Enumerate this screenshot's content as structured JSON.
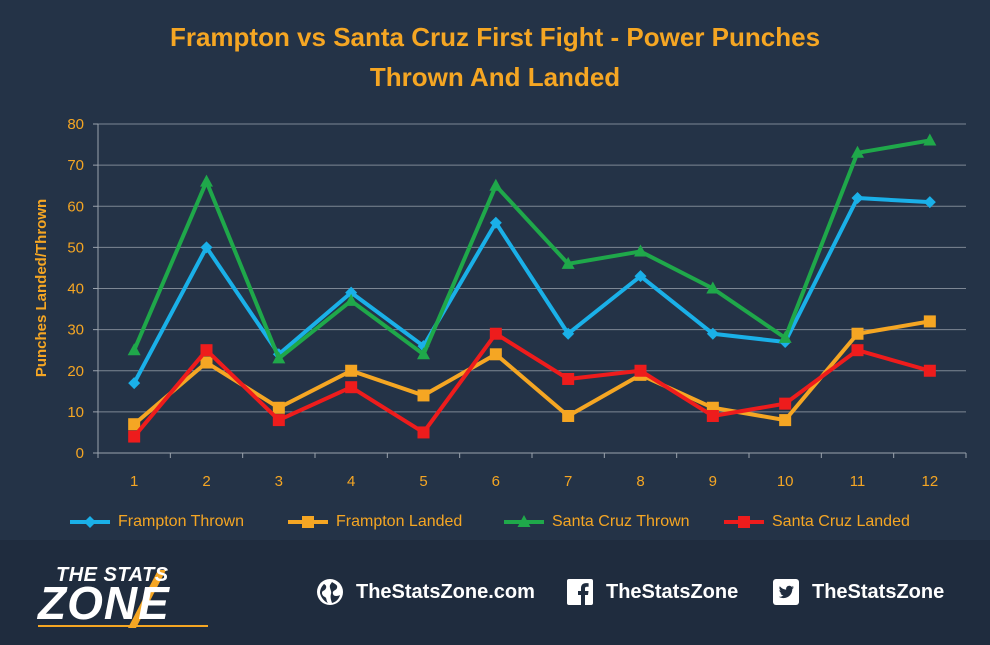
{
  "title_line1": "Frampton vs Santa Cruz First Fight - Power Punches",
  "title_line2": "Thrown And Landed",
  "chart_data": {
    "type": "line",
    "title": "Frampton vs Santa Cruz First Fight - Power Punches Thrown And Landed",
    "xlabel": "",
    "ylabel": "Punches Landed/Thrown",
    "x": [
      1,
      2,
      3,
      4,
      5,
      6,
      7,
      8,
      9,
      10,
      11,
      12
    ],
    "ylim": [
      0,
      80
    ],
    "yticks": [
      0,
      10,
      20,
      30,
      40,
      50,
      60,
      70,
      80
    ],
    "grid": true,
    "legend": "bottom",
    "series": [
      {
        "name": "Frampton Thrown",
        "color": "#1ab0e8",
        "marker": "diamond",
        "values": [
          17,
          50,
          24,
          39,
          26,
          56,
          29,
          43,
          29,
          27,
          62,
          61
        ]
      },
      {
        "name": "Frampton Landed",
        "color": "#f5a623",
        "marker": "square",
        "values": [
          7,
          22,
          11,
          20,
          14,
          24,
          9,
          19,
          11,
          8,
          29,
          32
        ]
      },
      {
        "name": "Santa Cruz Thrown",
        "color": "#1fa84a",
        "marker": "triangle",
        "values": [
          25,
          66,
          23,
          37,
          24,
          65,
          46,
          49,
          40,
          28,
          73,
          76
        ]
      },
      {
        "name": "Santa Cruz Landed",
        "color": "#ee1c1c",
        "marker": "square",
        "values": [
          4,
          25,
          8,
          16,
          5,
          29,
          18,
          20,
          9,
          12,
          25,
          20
        ]
      }
    ]
  },
  "footer": {
    "logo_line1": "THE STATS",
    "logo_line2": "ZONE",
    "website": "TheStatsZone.com",
    "facebook": "TheStatsZone",
    "twitter": "TheStatsZone",
    "icons": [
      "globe-icon",
      "facebook-icon",
      "twitter-icon"
    ]
  }
}
